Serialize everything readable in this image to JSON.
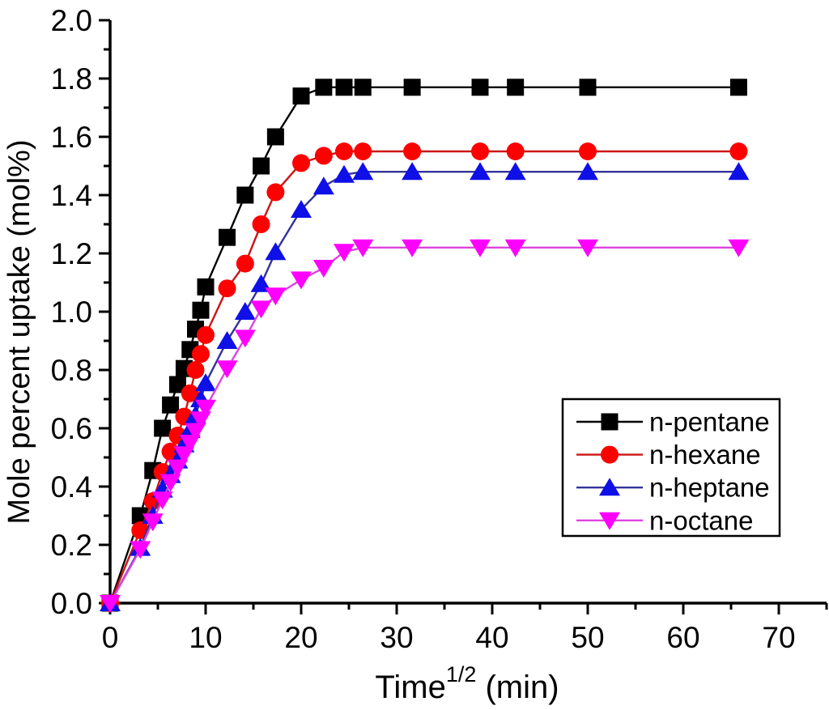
{
  "figure": {
    "background": "#ffffff",
    "axis_color": "#000000",
    "text_color": "#000000"
  },
  "chart_data": {
    "type": "line",
    "title": "",
    "xlabel_base": "Time",
    "xlabel_superscript": "1/2",
    "xlabel_suffix": " (min)",
    "ylabel": "Mole percent uptake (mol%)",
    "xlim": [
      0,
      75.3
    ],
    "ylim": [
      0,
      2.0
    ],
    "grid": false,
    "legend_position": "right-center",
    "x_major_ticks": [
      0,
      10,
      20,
      30,
      40,
      50,
      60,
      70
    ],
    "x_minor_ticks": [
      5,
      15,
      25,
      35,
      45,
      55,
      65,
      75
    ],
    "y_major_ticks": [
      0.0,
      0.2,
      0.4,
      0.6,
      0.8,
      1.0,
      1.2,
      1.4,
      1.6,
      1.8,
      2.0
    ],
    "y_minor_ticks": [
      0.1,
      0.3,
      0.5,
      0.7,
      0.9,
      1.1,
      1.3,
      1.5,
      1.7,
      1.9
    ],
    "x": [
      0,
      3.16,
      4.47,
      5.48,
      6.32,
      7.07,
      7.75,
      8.37,
      8.94,
      9.49,
      10.0,
      12.25,
      14.14,
      15.81,
      17.32,
      20.0,
      22.36,
      24.49,
      26.46,
      31.62,
      38.73,
      42.43,
      50.0,
      65.8
    ],
    "series": [
      {
        "name": "n-pentane",
        "marker": "square",
        "marker_color": "#000000",
        "line_color": "#000000",
        "plateau": 1.77,
        "values": [
          0,
          0.3,
          0.455,
          0.6,
          0.68,
          0.75,
          0.805,
          0.87,
          0.94,
          1.005,
          1.085,
          1.255,
          1.4,
          1.5,
          1.6,
          1.74,
          1.77,
          1.77,
          1.77,
          1.77,
          1.77,
          1.77,
          1.77,
          1.77
        ]
      },
      {
        "name": "n-hexane",
        "marker": "circle",
        "marker_color": "#ff0000",
        "line_color": "#cc1414",
        "plateau": 1.55,
        "values": [
          0,
          0.25,
          0.35,
          0.45,
          0.52,
          0.575,
          0.64,
          0.72,
          0.8,
          0.855,
          0.92,
          1.08,
          1.165,
          1.3,
          1.41,
          1.51,
          1.535,
          1.55,
          1.55,
          1.55,
          1.55,
          1.55,
          1.55,
          1.55
        ]
      },
      {
        "name": "n-heptane",
        "marker": "triangle-up",
        "marker_color": "#0f0fe8",
        "line_color": "#333399",
        "plateau": 1.48,
        "values": [
          0,
          0.19,
          0.3,
          0.39,
          0.44,
          0.49,
          0.545,
          0.595,
          0.645,
          0.7,
          0.755,
          0.9,
          1.0,
          1.095,
          1.205,
          1.35,
          1.43,
          1.47,
          1.48,
          1.48,
          1.48,
          1.48,
          1.48,
          1.48
        ]
      },
      {
        "name": "n-octane",
        "marker": "triangle-down",
        "marker_color": "#ff00ff",
        "line_color": "#dd44dd",
        "plateau": 1.22,
        "values": [
          0,
          0.185,
          0.28,
          0.355,
          0.415,
          0.465,
          0.51,
          0.55,
          0.59,
          0.63,
          0.67,
          0.805,
          0.91,
          1.01,
          1.055,
          1.11,
          1.15,
          1.205,
          1.22,
          1.22,
          1.22,
          1.22,
          1.22,
          1.22
        ]
      }
    ]
  }
}
